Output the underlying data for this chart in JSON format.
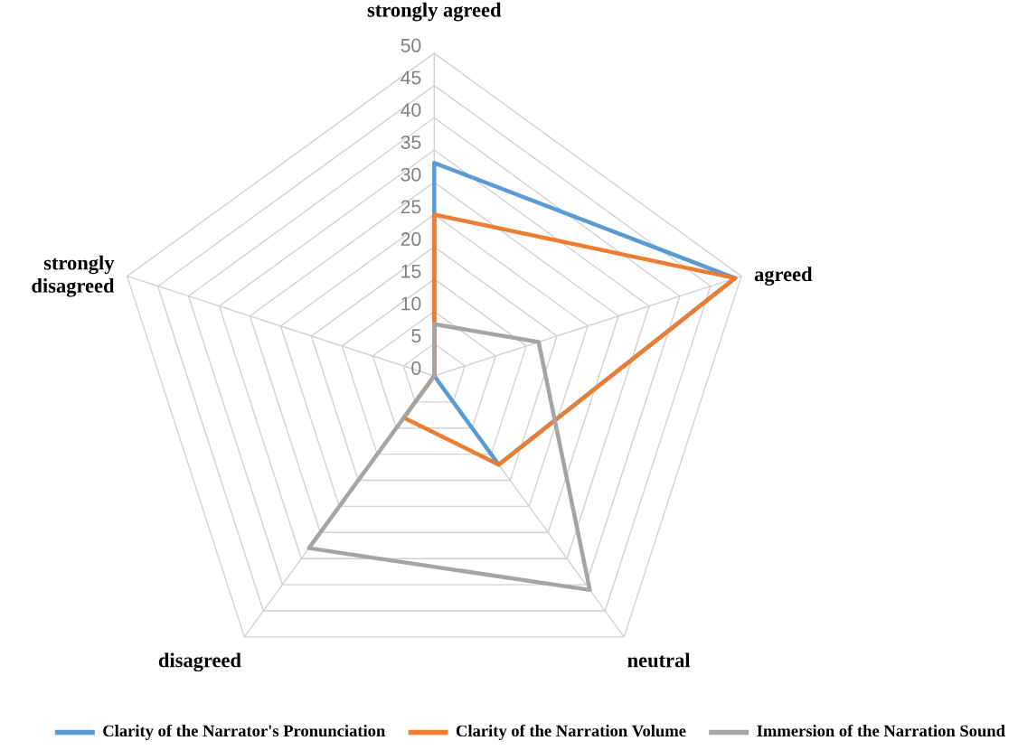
{
  "chart_data": {
    "type": "radar",
    "categories": [
      "strongly agreed",
      "agreed",
      "neutral",
      "disagreed",
      "strongly disagreed"
    ],
    "series": [
      {
        "name": "Clarity of the Narrator's Pronunciation",
        "color": "#5b9bd5",
        "values": [
          33,
          49,
          17,
          0,
          0
        ]
      },
      {
        "name": "Clarity of the Narration Volume",
        "color": "#ed7d31",
        "values": [
          25,
          49,
          17,
          8,
          0
        ]
      },
      {
        "name": "Immersion of the Narration Sound",
        "color": "#a5a5a5",
        "values": [
          8,
          17,
          41,
          33,
          0
        ]
      }
    ],
    "ylim": [
      0,
      50
    ],
    "yticks": [
      0,
      5,
      10,
      15,
      20,
      25,
      30,
      35,
      40,
      45,
      50
    ],
    "grid": true,
    "legend": "bottom"
  }
}
